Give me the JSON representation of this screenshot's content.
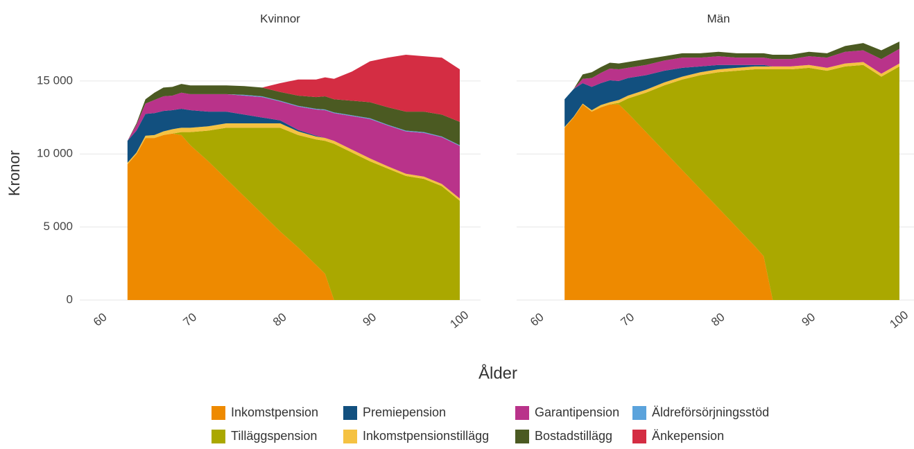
{
  "chart_data": {
    "type": "area",
    "xlabel": "Ålder",
    "ylabel": "Kronor",
    "x": [
      63,
      64,
      65,
      66,
      67,
      68,
      69,
      70,
      72,
      74,
      76,
      78,
      80,
      82,
      84,
      85,
      86,
      88,
      90,
      92,
      94,
      96,
      98,
      100
    ],
    "xlim": [
      60,
      100
    ],
    "xticks": [
      60,
      70,
      80,
      90,
      100
    ],
    "ylim": [
      0,
      17700
    ],
    "yticks": [
      0,
      {
        "value": 5000,
        "label": "5 000"
      },
      {
        "value": 10000,
        "label": "10 000"
      },
      {
        "value": 15000,
        "label": "15 000"
      }
    ],
    "grid": true,
    "series": [
      {
        "name": "Inkomstpension",
        "color": "#ee8a00"
      },
      {
        "name": "Tilläggspension",
        "color": "#aaa800"
      },
      {
        "name": "Inkomstpensionstillägg",
        "color": "#f5c242"
      },
      {
        "name": "Premiepension",
        "color": "#12507f"
      },
      {
        "name": "Garantipension",
        "color": "#b9338a"
      },
      {
        "name": "Äldreförsörjningsstöd",
        "color": "#5ba3dc"
      },
      {
        "name": "Bostadstillägg",
        "color": "#4b5a22"
      },
      {
        "name": "Änkepension",
        "color": "#d42d43"
      }
    ],
    "facets": [
      {
        "title": "Kvinnor",
        "series": [
          {
            "values": [
              9300,
              10000,
              11100,
              11100,
              11300,
              11400,
              11300,
              10600,
              9500,
              8300,
              7100,
              5900,
              4700,
              3600,
              2400,
              1800,
              0,
              0,
              0,
              0,
              0,
              0,
              0,
              0
            ]
          },
          {
            "values": [
              0,
              0,
              0,
              0,
              0,
              0,
              200,
              900,
              2100,
              3500,
              4700,
              5900,
              7100,
              7700,
              8600,
              9100,
              10700,
              10100,
              9500,
              9000,
              8500,
              8300,
              7800,
              6800
            ]
          },
          {
            "values": [
              100,
              100,
              150,
              200,
              250,
              300,
              300,
              300,
              300,
              300,
              300,
              300,
              300,
              250,
              200,
              200,
              200,
              200,
              200,
              150,
              150,
              150,
              150,
              150
            ]
          },
          {
            "values": [
              1500,
              1500,
              1500,
              1500,
              1400,
              1300,
              1300,
              1200,
              1000,
              800,
              600,
              400,
              200,
              100,
              50,
              0,
              0,
              0,
              0,
              0,
              0,
              0,
              0,
              0
            ]
          },
          {
            "values": [
              0,
              400,
              700,
              900,
              1000,
              1000,
              1100,
              1100,
              1200,
              1200,
              1300,
              1400,
              1300,
              1600,
              1800,
              1900,
              1900,
              2300,
              2700,
              2800,
              2900,
              3000,
              3200,
              3600
            ]
          },
          {
            "values": [
              0,
              0,
              0,
              0,
              0,
              0,
              0,
              0,
              0,
              0,
              50,
              50,
              50,
              50,
              50,
              50,
              50,
              50,
              50,
              50,
              50,
              50,
              50,
              50
            ]
          },
          {
            "values": [
              0,
              100,
              300,
              500,
              600,
              600,
              600,
              600,
              600,
              600,
              600,
              600,
              600,
              700,
              800,
              900,
              900,
              1000,
              1100,
              1200,
              1300,
              1400,
              1500,
              1600
            ]
          },
          {
            "values": [
              0,
              0,
              0,
              0,
              0,
              0,
              0,
              0,
              0,
              0,
              0,
              0,
              600,
              1100,
              1200,
              1300,
              1400,
              2000,
              2800,
              3400,
              3900,
              3800,
              3900,
              3600
            ]
          }
        ]
      },
      {
        "title": "Män",
        "series": [
          {
            "values": [
              11800,
              12500,
              13400,
              12900,
              13200,
              13400,
              13400,
              12800,
              11500,
              10200,
              8900,
              7600,
              6300,
              5000,
              3700,
              3000,
              0,
              0,
              0,
              0,
              0,
              0,
              0,
              0
            ]
          },
          {
            "values": [
              0,
              0,
              0,
              0,
              0,
              0,
              100,
              1000,
              2700,
              4500,
              6200,
              7800,
              9300,
              10700,
              12100,
              12800,
              15800,
              15800,
              15900,
              15700,
              16000,
              16100,
              15300,
              16000
            ]
          },
          {
            "values": [
              50,
              50,
              50,
              100,
              150,
              150,
              200,
              200,
              200,
              200,
              200,
              200,
              200,
              200,
              200,
              200,
              200,
              200,
              200,
              200,
              200,
              200,
              200,
              200
            ]
          },
          {
            "values": [
              1900,
              1900,
              1400,
              1600,
              1500,
              1500,
              1300,
              1200,
              1000,
              800,
              600,
              400,
              300,
              200,
              100,
              100,
              0,
              0,
              0,
              0,
              0,
              0,
              0,
              0
            ]
          },
          {
            "values": [
              0,
              0,
              300,
              600,
              700,
              800,
              800,
              700,
              700,
              700,
              700,
              600,
              600,
              500,
              500,
              500,
              500,
              500,
              600,
              700,
              800,
              800,
              1000,
              1000
            ]
          },
          {
            "values": [
              0,
              0,
              0,
              0,
              0,
              0,
              0,
              0,
              0,
              0,
              0,
              0,
              0,
              0,
              0,
              0,
              0,
              0,
              0,
              0,
              0,
              0,
              0,
              0
            ]
          },
          {
            "values": [
              0,
              0,
              300,
              400,
              400,
              400,
              400,
              400,
              400,
              300,
              300,
              300,
              300,
              300,
              300,
              300,
              300,
              300,
              300,
              300,
              400,
              500,
              600,
              500
            ]
          },
          {
            "values": [
              0,
              0,
              0,
              0,
              0,
              0,
              0,
              0,
              0,
              0,
              0,
              0,
              0,
              0,
              0,
              0,
              0,
              0,
              0,
              0,
              0,
              0,
              0,
              0
            ]
          }
        ]
      }
    ]
  }
}
